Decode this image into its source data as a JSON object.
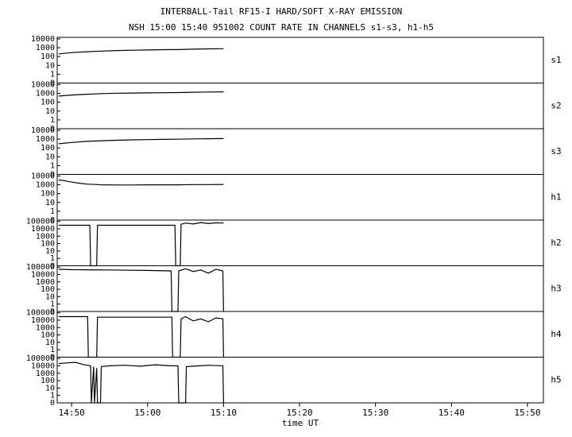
{
  "chart_data": [
    {
      "type": "line",
      "title": "INTERBALL-Tail RF15-I HARD/SOFT X-RAY EMISSION",
      "subtitle": "NSH 15:00 15:40 951002  COUNT RATE IN CHANNELS s1-s3, h1-h5",
      "name": "s1",
      "color": "#000000",
      "yscale": "log",
      "xlim": [
        888.1,
        952.1
      ],
      "ylim": [
        0.1,
        15000
      ],
      "yticks": [
        10000,
        1000,
        100,
        10,
        1,
        {
          "value": 0.1,
          "label": "0"
        }
      ],
      "x": [
        888.3,
        890,
        892,
        894,
        896,
        898,
        900,
        902,
        904,
        906,
        908,
        910
      ],
      "values": [
        200,
        280,
        350,
        420,
        480,
        520,
        560,
        600,
        620,
        680,
        740,
        780
      ]
    },
    {
      "type": "line",
      "name": "s2",
      "color": "#000000",
      "yscale": "log",
      "xlim": [
        888.1,
        952.1
      ],
      "ylim": [
        0.1,
        15000
      ],
      "yticks": [
        10000,
        1000,
        100,
        10,
        1,
        {
          "value": 0.1,
          "label": "0"
        }
      ],
      "x": [
        888.3,
        890,
        892,
        894,
        896,
        898,
        900,
        902,
        904,
        906,
        908,
        910
      ],
      "values": [
        500,
        650,
        800,
        950,
        1050,
        1100,
        1150,
        1200,
        1250,
        1350,
        1450,
        1500
      ]
    },
    {
      "type": "line",
      "name": "s3",
      "color": "#000000",
      "yscale": "log",
      "xlim": [
        888.1,
        952.1
      ],
      "ylim": [
        0.1,
        15000
      ],
      "yticks": [
        10000,
        1000,
        100,
        10,
        1,
        {
          "value": 0.1,
          "label": "0"
        }
      ],
      "x": [
        888.3,
        890,
        892,
        894,
        896,
        898,
        900,
        902,
        904,
        906,
        908,
        910
      ],
      "values": [
        300,
        420,
        550,
        650,
        750,
        820,
        880,
        930,
        980,
        1050,
        1100,
        1150
      ]
    },
    {
      "type": "line",
      "name": "h1",
      "color": "#000000",
      "yscale": "log",
      "xlim": [
        888.1,
        952.1
      ],
      "ylim": [
        0.1,
        15000
      ],
      "yticks": [
        10000,
        1000,
        100,
        10,
        1,
        {
          "value": 0.1,
          "label": "0"
        }
      ],
      "x": [
        888.3,
        889,
        890,
        891,
        892,
        894,
        896,
        898,
        900,
        902,
        904,
        906,
        908,
        910
      ],
      "values": [
        3500,
        3000,
        2000,
        1500,
        1200,
        1000,
        950,
        950,
        1000,
        1000,
        1000,
        1050,
        1050,
        1100
      ]
    },
    {
      "type": "line",
      "name": "h2",
      "color": "#000000",
      "yscale": "log",
      "xlim": [
        888.1,
        952.1
      ],
      "ylim": [
        0.1,
        150000
      ],
      "yticks": [
        100000,
        10000,
        1000,
        100,
        10,
        1,
        {
          "value": 0.1,
          "label": "0"
        }
      ],
      "x": [
        888.3,
        890,
        892.4,
        892.5,
        893.3,
        893.4,
        896,
        900,
        903.6,
        903.7,
        904.3,
        904.4,
        905,
        906,
        907,
        908,
        909,
        910
      ],
      "values": [
        30000,
        30000,
        30000,
        0.1,
        0.1,
        30000,
        30000,
        30000,
        30000,
        0.1,
        0.1,
        40000,
        60000,
        45000,
        70000,
        50000,
        65000,
        60000
      ]
    },
    {
      "type": "line",
      "name": "h3",
      "color": "#000000",
      "yscale": "log",
      "xlim": [
        888.1,
        952.1
      ],
      "ylim": [
        0.1,
        150000
      ],
      "yticks": [
        100000,
        10000,
        1000,
        100,
        10,
        1,
        {
          "value": 0.1,
          "label": "0"
        }
      ],
      "x": [
        888.3,
        890,
        895,
        900,
        903.1,
        903.2,
        904.0,
        904.1,
        905,
        906,
        907,
        908,
        909,
        909.9,
        910
      ],
      "values": [
        50000,
        45000,
        40000,
        35000,
        30000,
        0.1,
        0.1,
        30000,
        60000,
        25000,
        40000,
        15000,
        50000,
        30000,
        0.1
      ]
    },
    {
      "type": "line",
      "name": "h4",
      "color": "#000000",
      "yscale": "log",
      "xlim": [
        888.1,
        952.1
      ],
      "ylim": [
        0.1,
        150000
      ],
      "yticks": [
        100000,
        10000,
        1000,
        100,
        10,
        1,
        {
          "value": 0.1,
          "label": "0"
        }
      ],
      "x": [
        888.3,
        890,
        892.1,
        892.2,
        893.3,
        893.4,
        896,
        900,
        903.2,
        903.3,
        904.3,
        904.4,
        905,
        906,
        907,
        908,
        909,
        909.9,
        910
      ],
      "values": [
        30000,
        30000,
        30000,
        0.1,
        0.1,
        25000,
        25000,
        25000,
        25000,
        0.1,
        0.1,
        15000,
        30000,
        8000,
        15000,
        6000,
        20000,
        15000,
        0.1
      ]
    },
    {
      "type": "line",
      "name": "h5",
      "color": "#000000",
      "yscale": "log",
      "xlabel": "time UT",
      "xlim": [
        888.1,
        952.1
      ],
      "ylim": [
        0.1,
        150000
      ],
      "yticks": [
        100000,
        10000,
        1000,
        100,
        10,
        1,
        {
          "value": 0.1,
          "label": "0"
        }
      ],
      "xticks": [
        {
          "value": 890,
          "label": "14:50"
        },
        {
          "value": 900,
          "label": "15:00"
        },
        {
          "value": 910,
          "label": "15:10"
        },
        {
          "value": 920,
          "label": "15:20"
        },
        {
          "value": 930,
          "label": "15:30"
        },
        {
          "value": 940,
          "label": "15:40"
        },
        {
          "value": 950,
          "label": "15:50"
        }
      ],
      "x": [
        888.3,
        889.5,
        890.5,
        891.5,
        892.5,
        892.6,
        892.9,
        893.0,
        893.3,
        893.4,
        893.8,
        893.9,
        895,
        897,
        899,
        901,
        903,
        904.0,
        904.1,
        905.0,
        905.1,
        906,
        908,
        909.9,
        910
      ],
      "values": [
        20000,
        25000,
        30000,
        15000,
        10000,
        0.1,
        8000,
        0.1,
        5000,
        0.1,
        0.1,
        8000,
        10000,
        12000,
        9000,
        14000,
        10000,
        10000,
        0.1,
        0.1,
        8000,
        9000,
        12000,
        10000,
        0.1
      ]
    }
  ]
}
